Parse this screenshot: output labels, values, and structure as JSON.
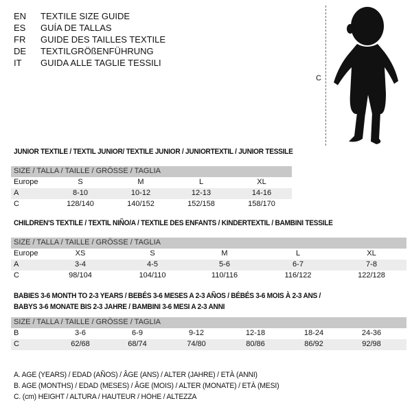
{
  "languages": [
    {
      "code": "EN",
      "text": "TEXTILE SIZE GUIDE"
    },
    {
      "code": "ES",
      "text": "GUÍA DE TALLAS"
    },
    {
      "code": "FR",
      "text": "GUIDE DES TAILLES TEXTILE"
    },
    {
      "code": "DE",
      "text": "TEXTILGRÖßENFÜHRUNG"
    },
    {
      "code": "IT",
      "text": "GUIDA ALLE TAGLIE TESSILI"
    }
  ],
  "figure": {
    "measure_label": "C"
  },
  "tables": [
    {
      "title": "JUNIOR TEXTILE / TEXTIL JUNIOR/ TEXTILE JUNIOR / JUNIORTEXTIL / JUNIOR TESSILE",
      "header": "SIZE / TALLA / TAILLE / GRÖSSE / TAGLIA",
      "rows": [
        {
          "label": "Europe",
          "values": [
            "S",
            "M",
            "L",
            "XL"
          ]
        },
        {
          "label": "A",
          "values": [
            "8-10",
            "10-12",
            "12-13",
            "14-16"
          ]
        },
        {
          "label": "C",
          "values": [
            "128/140",
            "140/152",
            "152/158",
            "158/170"
          ]
        }
      ]
    },
    {
      "title": "CHILDREN'S TEXTILE / TEXTIL NIÑO/A / TEXTILE DES ENFANTS / KINDERTEXTIL / BAMBINI TESSILE",
      "header": "SIZE / TALLA / TAILLE / GRÖSSE / TAGLIA",
      "rows": [
        {
          "label": "Europe",
          "values": [
            "XS",
            "S",
            "M",
            "L",
            "XL"
          ]
        },
        {
          "label": "A",
          "values": [
            "3-4",
            "4-5",
            "5-6",
            "6-7",
            "7-8"
          ]
        },
        {
          "label": "C",
          "values": [
            "98/104",
            "104/110",
            "110/116",
            "116/122",
            "122/128"
          ]
        }
      ]
    },
    {
      "title": "BABIES 3-6 MONTH TO 2-3 YEARS / BEBÉS 3-6 MESES A 2-3 AÑOS / BÉBÉS 3-6 MOIS À 2-3 ANS /",
      "title2": "BABYS 3-6 MONATE BIS 2-3 JAHRE / BAMBINI 3-6 MESI A 2-3 ANNI",
      "header": "SIZE / TALLA / TAILLE / GRÖSSE / TAGLIA",
      "rows": [
        {
          "label": "B",
          "values": [
            "3-6",
            "6-9",
            "9-12",
            "12-18",
            "18-24",
            "24-36"
          ]
        },
        {
          "label": "C",
          "values": [
            "62/68",
            "68/74",
            "74/80",
            "80/86",
            "86/92",
            "92/98"
          ]
        }
      ]
    }
  ],
  "legend": [
    "A. AGE (YEARS) / EDAD (AÑOS) / ÂGE (ANS) / ALTER (JAHRE) / ETÀ (ANNI)",
    "B. AGE (MONTHS) / EDAD (MESES) / ÂGE (MOIS) / ALTER (MONATE) / ETÀ (MESI)",
    "C. (cm) HEIGHT / ALTURA / HAUTEUR / HÖHE / ALTEZZA"
  ]
}
